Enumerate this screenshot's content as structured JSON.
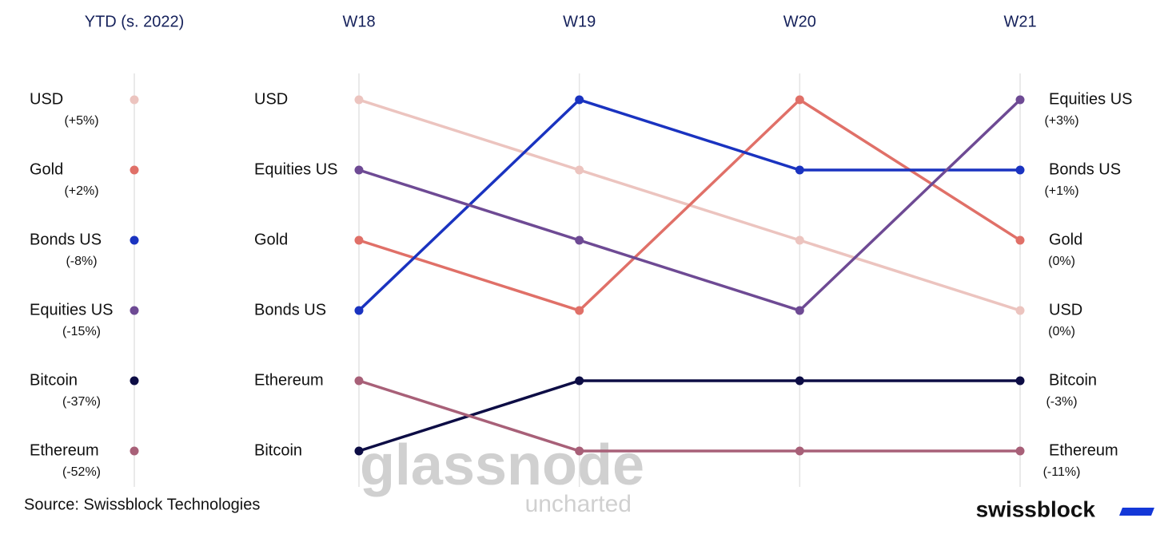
{
  "chart_data": {
    "type": "bump",
    "ytd_header": "YTD (s. 2022)",
    "x": [
      "W18",
      "W19",
      "W20",
      "W21"
    ],
    "ylim": [
      1,
      6
    ],
    "series": [
      {
        "name": "USD",
        "color": "#ecc4bf",
        "values": [
          1,
          2,
          3,
          4
        ],
        "ytd_rank": 1,
        "ytd_change": 5,
        "ytd_change_label": "(+5%)",
        "w21_change": 0,
        "w21_change_label": "(0%)"
      },
      {
        "name": "Gold",
        "color": "#e07068",
        "values": [
          3,
          4,
          1,
          3
        ],
        "ytd_rank": 2,
        "ytd_change": 2,
        "ytd_change_label": "(+2%)",
        "w21_change": 0,
        "w21_change_label": "(0%)"
      },
      {
        "name": "Bonds US",
        "color": "#1a33c0",
        "values": [
          4,
          1,
          2,
          2
        ],
        "ytd_rank": 3,
        "ytd_change": -8,
        "ytd_change_label": "(-8%)",
        "w21_change": 1,
        "w21_change_label": "(+1%)"
      },
      {
        "name": "Equities US",
        "color": "#6e4a94",
        "values": [
          2,
          3,
          4,
          1
        ],
        "ytd_rank": 4,
        "ytd_change": -15,
        "ytd_change_label": "(-15%)",
        "w21_change": 3,
        "w21_change_label": "(+3%)"
      },
      {
        "name": "Bitcoin",
        "color": "#0d0d45",
        "values": [
          6,
          5,
          5,
          5
        ],
        "ytd_rank": 5,
        "ytd_change": -37,
        "ytd_change_label": "(-37%)",
        "w21_change": -3,
        "w21_change_label": "(-3%)"
      },
      {
        "name": "Ethereum",
        "color": "#a86078",
        "values": [
          5,
          6,
          6,
          6
        ],
        "ytd_rank": 6,
        "ytd_change": -52,
        "ytd_change_label": "(-52%)",
        "w21_change": -11,
        "w21_change_label": "(-11%)"
      }
    ],
    "source": "Source: Swissblock Technologies",
    "watermark": "glassnode",
    "watermark_sub": "uncharted",
    "brand": "swissblock"
  }
}
